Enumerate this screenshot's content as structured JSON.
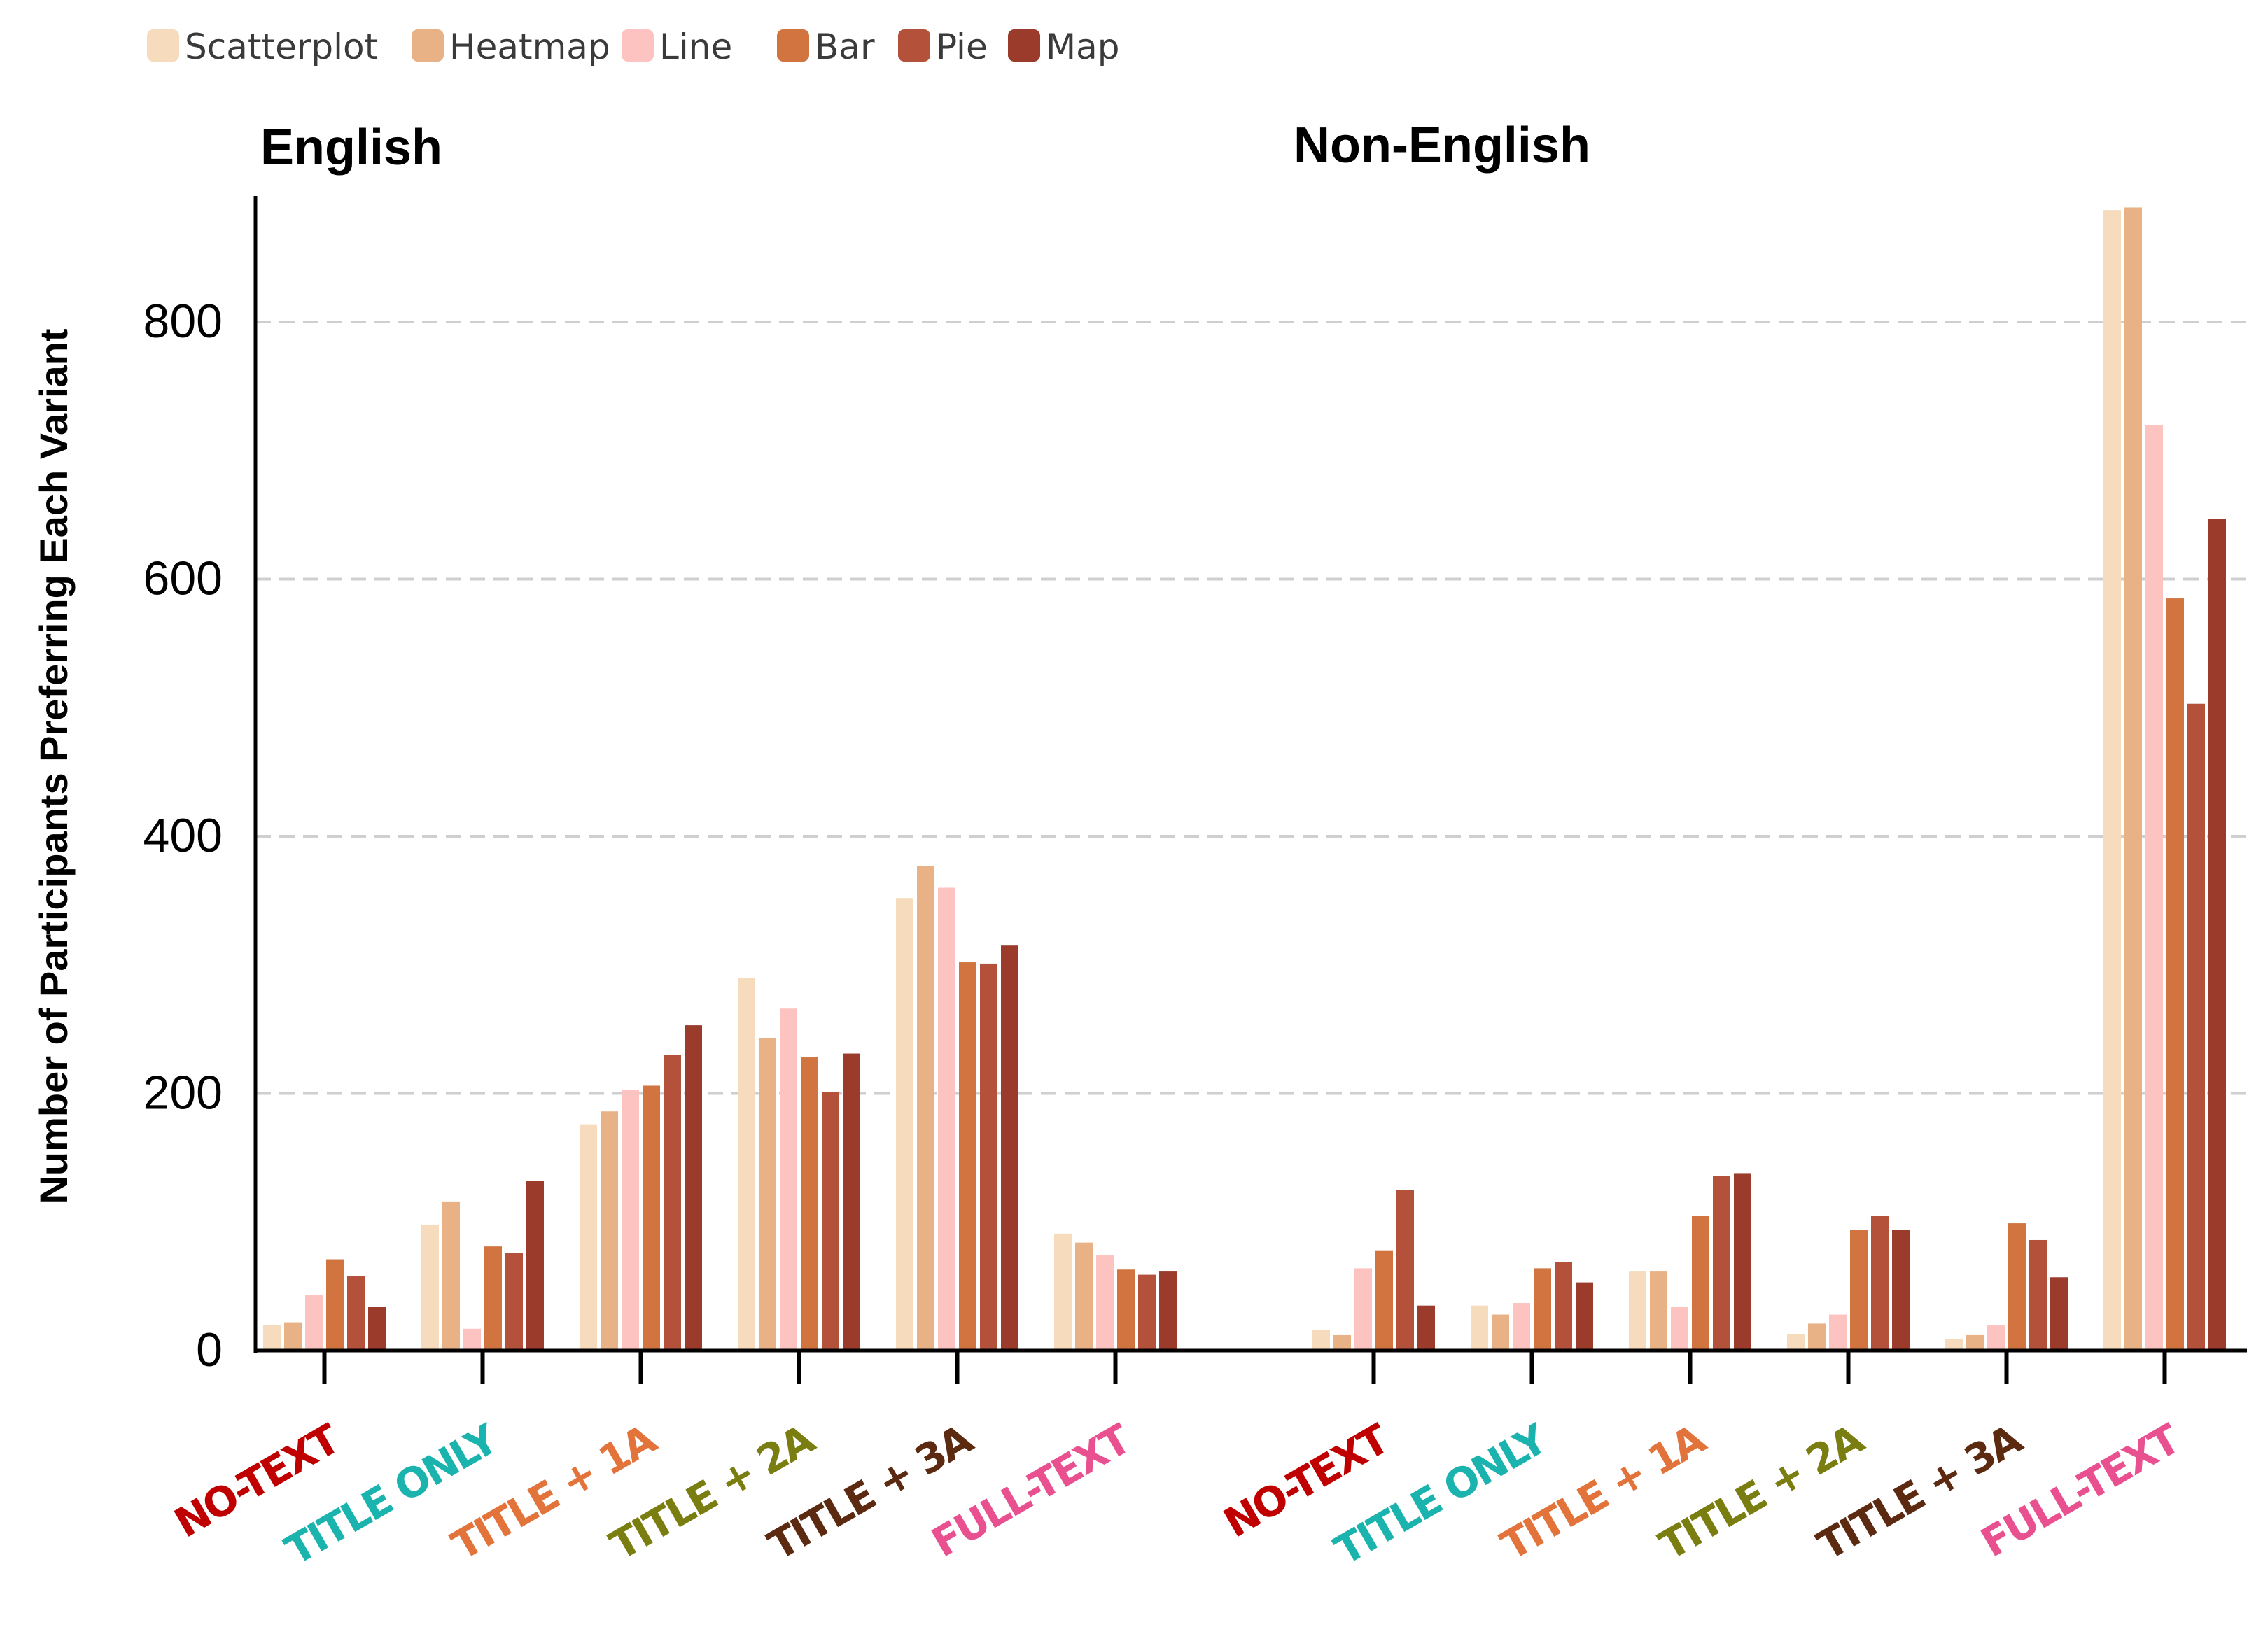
{
  "chart_data": {
    "type": "bar",
    "ylabel": "Number of Participants Preferring Each Variant",
    "ylim": [
      0,
      900
    ],
    "yticks": [
      0,
      200,
      400,
      600,
      800
    ],
    "grid": "horizontal dashed",
    "legend_position": "top-left",
    "series": [
      {
        "name": "Scatterplot",
        "color": "#f6dcbc"
      },
      {
        "name": "Heatmap",
        "color": "#e8b286"
      },
      {
        "name": "Line",
        "color": "#fcc3c1"
      },
      {
        "name": "Bar",
        "color": "#d2743f"
      },
      {
        "name": "Pie",
        "color": "#b4513b"
      },
      {
        "name": "Map",
        "color": "#9b3b2b"
      }
    ],
    "panels": [
      {
        "title": "English",
        "groups": [
          {
            "label": "NO-TEXT",
            "color": "#c00000",
            "values": [
              20,
              22,
              43,
              71,
              58,
              34
            ]
          },
          {
            "label": "TITLE ONLY",
            "color": "#1bb3ad",
            "values": [
              98,
              116,
              17,
              81,
              76,
              132
            ]
          },
          {
            "label": "TITLE + 1A",
            "color": "#e2733a",
            "values": [
              176,
              186,
              203,
              206,
              230,
              253
            ]
          },
          {
            "label": "TITLE + 2A",
            "color": "#7a7d10",
            "values": [
              290,
              243,
              266,
              228,
              201,
              231
            ]
          },
          {
            "label": "TITLE + 3A",
            "color": "#5c2a10",
            "values": [
              352,
              377,
              360,
              302,
              301,
              315
            ]
          },
          {
            "label": "FULL-TEXT",
            "color": "#e8508f",
            "values": [
              91,
              84,
              74,
              63,
              59,
              62
            ]
          }
        ]
      },
      {
        "title": "Non-English",
        "groups": [
          {
            "label": "NO-TEXT",
            "color": "#c00000",
            "values": [
              16,
              12,
              64,
              78,
              125,
              35
            ]
          },
          {
            "label": "TITLE ONLY",
            "color": "#1bb3ad",
            "values": [
              35,
              28,
              37,
              64,
              69,
              53
            ]
          },
          {
            "label": "TITLE + 1A",
            "color": "#e2733a",
            "values": [
              62,
              62,
              34,
              105,
              136,
              138
            ]
          },
          {
            "label": "TITLE + 2A",
            "color": "#7a7d10",
            "values": [
              13,
              21,
              28,
              94,
              105,
              94
            ]
          },
          {
            "label": "TITLE + 3A",
            "color": "#5c2a10",
            "values": [
              9,
              12,
              20,
              99,
              86,
              57
            ]
          },
          {
            "label": "FULL-TEXT",
            "color": "#e8508f",
            "values": [
              887,
              889,
              720,
              585,
              503,
              647
            ]
          }
        ]
      }
    ]
  }
}
